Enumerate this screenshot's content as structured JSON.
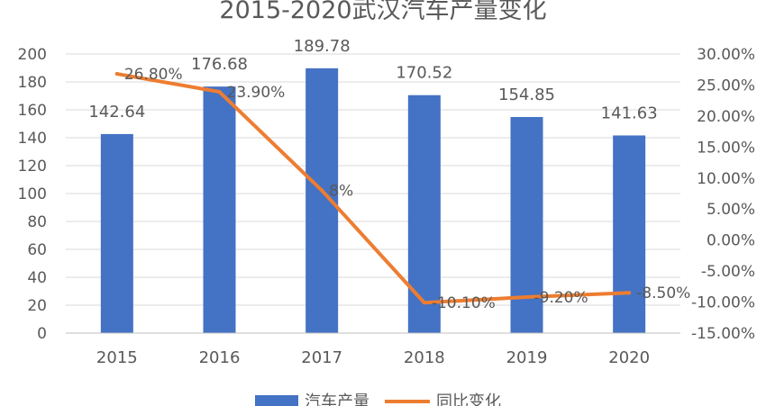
{
  "chart_data": {
    "type": "bar",
    "title": "2015-2020武汉汽车产量变化",
    "categories": [
      "2015",
      "2016",
      "2017",
      "2018",
      "2019",
      "2020"
    ],
    "series": [
      {
        "name": "汽车产量",
        "kind": "bar",
        "axis": "left",
        "values": [
          142.64,
          176.68,
          189.78,
          170.52,
          154.85,
          141.63
        ],
        "labels": [
          "142.64",
          "176.68",
          "189.78",
          "170.52",
          "154.85",
          "141.63"
        ]
      },
      {
        "name": "同比变化",
        "kind": "line",
        "axis": "right",
        "values": [
          26.8,
          23.9,
          8,
          -10.1,
          -9.2,
          -8.5
        ],
        "labels": [
          "26.80%",
          "23.90%",
          "8%",
          "-10.10%",
          "-9.20%",
          "-8.50%"
        ]
      }
    ],
    "ylim_left": [
      0,
      200
    ],
    "yticks_left": [
      "0",
      "20",
      "40",
      "60",
      "80",
      "100",
      "120",
      "140",
      "160",
      "180",
      "200"
    ],
    "ylim_right": [
      -15,
      30
    ],
    "yticks_right": [
      "-15.00%",
      "-10.00%",
      "-5.00%",
      "0.00%",
      "5.00%",
      "10.00%",
      "15.00%",
      "20.00%",
      "25.00%",
      "30.00%"
    ],
    "grid": true,
    "legend_position": "bottom",
    "colors": {
      "bar": "#4472C4",
      "line": "#ED7D31",
      "grid": "#D9D9D9",
      "text": "#595959"
    }
  }
}
